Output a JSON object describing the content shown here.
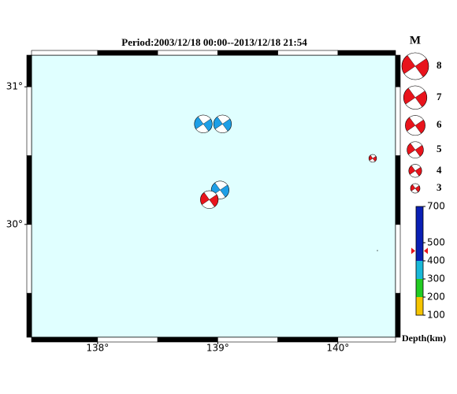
{
  "title": "Period:2003/12/18 00:00--2013/12/18 21:54",
  "map": {
    "lon_range": [
      137.45,
      140.48
    ],
    "lat_range": [
      29.18,
      31.23
    ],
    "lon_ticks": [
      {
        "value": 138,
        "label": "138°"
      },
      {
        "value": 139,
        "label": "139°"
      },
      {
        "value": 140,
        "label": "140°"
      }
    ],
    "lat_ticks": [
      {
        "value": 30,
        "label": "30°"
      },
      {
        "value": 31,
        "label": "31°"
      }
    ],
    "frame_lons": [
      137.45,
      138,
      138.5,
      139,
      139.5,
      140,
      140.48
    ],
    "frame_lats": [
      29.18,
      29.5,
      30,
      30.5,
      31,
      31.23
    ]
  },
  "events": [
    {
      "lon": 138.88,
      "lat": 30.73,
      "mag": 5.4,
      "color": "#1e9fe6"
    },
    {
      "lon": 139.04,
      "lat": 30.73,
      "mag": 5.4,
      "color": "#1e9fe6"
    },
    {
      "lon": 139.02,
      "lat": 30.25,
      "mag": 5.4,
      "color": "#1e9fe6"
    },
    {
      "lon": 138.93,
      "lat": 30.18,
      "mag": 5.4,
      "color": "#e8141c"
    },
    {
      "lon": 140.29,
      "lat": 30.48,
      "mag": 2.5,
      "color": "#e8141c"
    }
  ],
  "legend": {
    "title": "M",
    "magnitudes": [
      8,
      7,
      6,
      5,
      4,
      3
    ],
    "color": "#e8141c"
  },
  "colorbar": {
    "range": [
      100,
      700
    ],
    "ticks": [
      100,
      200,
      300,
      400,
      500,
      700
    ],
    "label": "Depth(km)",
    "marker": 455,
    "bands": [
      {
        "from": 100,
        "to": 200,
        "color": "#f5c400"
      },
      {
        "from": 200,
        "to": 300,
        "color": "#22cc22"
      },
      {
        "from": 300,
        "to": 400,
        "color": "#19b8d8"
      },
      {
        "from": 400,
        "to": 700,
        "color": "#0a1fb4"
      }
    ]
  }
}
